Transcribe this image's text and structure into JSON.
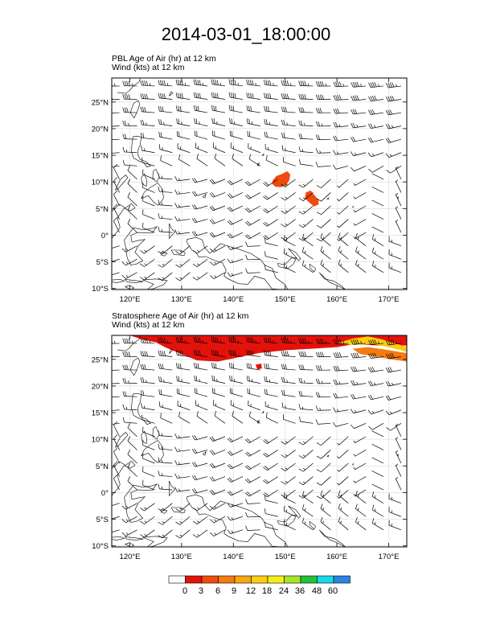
{
  "main_title": "2014-03-01_18:00:00",
  "colors": {
    "levels": [
      "#ffffff",
      "#e3120b",
      "#f04b0f",
      "#f47a12",
      "#f7a612",
      "#f9cd10",
      "#f3ee1a",
      "#a6e32a",
      "#22c13a",
      "#19d8ea",
      "#2a83e0",
      "#0b0f86"
    ],
    "coast": "#000000",
    "grid": "#d9d9d9"
  },
  "colorbar": {
    "labels": [
      "0",
      "3",
      "6",
      "9",
      "12",
      "18",
      "24",
      "36",
      "48",
      "60"
    ]
  },
  "chart_data": [
    {
      "type": "heatmap",
      "title": "PBL Age of Air   (hr)     at   12 km",
      "subtitle": "Wind   (kts)     at   12 km",
      "xlim": [
        116.5,
        173.5
      ],
      "ylim": [
        -10.2,
        29.5
      ],
      "xticks": [
        120,
        130,
        140,
        150,
        160,
        170
      ],
      "xtick_labels": [
        "120°E",
        "130°E",
        "140°E",
        "150°E",
        "160°E",
        "170°E"
      ],
      "yticks": [
        -10,
        -5,
        0,
        5,
        10,
        15,
        20,
        25
      ],
      "ytick_labels": [
        "10°S",
        "5°S",
        "0°",
        "5°N",
        "10°N",
        "15°N",
        "20°N",
        "25°N"
      ],
      "grid": true,
      "regions": [
        {
          "name": "patch-west",
          "level": 2,
          "points": [
            [
              147.6,
              10.3
            ],
            [
              148.3,
              11.1
            ],
            [
              149.4,
              11.5
            ],
            [
              150.4,
              12.0
            ],
            [
              151.0,
              11.4
            ],
            [
              150.8,
              10.3
            ],
            [
              150.2,
              9.4
            ],
            [
              149.2,
              9.0
            ],
            [
              148.1,
              9.1
            ],
            [
              147.5,
              9.6
            ]
          ]
        },
        {
          "name": "patch-east",
          "level": 2,
          "points": [
            [
              154.0,
              8.0
            ],
            [
              154.9,
              8.4
            ],
            [
              155.6,
              7.6
            ],
            [
              156.4,
              6.7
            ],
            [
              156.5,
              5.8
            ],
            [
              155.6,
              5.4
            ],
            [
              154.7,
              6.1
            ],
            [
              153.8,
              6.9
            ]
          ]
        }
      ]
    },
    {
      "type": "heatmap",
      "title": "Stratosphere Age of Air   (hr)     at   12 km",
      "subtitle": "Wind   (kts)     at   12 km",
      "xlim": [
        116.5,
        173.5
      ],
      "ylim": [
        -10.2,
        29.5
      ],
      "xticks": [
        120,
        130,
        140,
        150,
        160,
        170
      ],
      "xtick_labels": [
        "120°E",
        "130°E",
        "140°E",
        "150°E",
        "160°E",
        "170°E"
      ],
      "yticks": [
        -10,
        -5,
        0,
        5,
        10,
        15,
        20,
        25
      ],
      "ytick_labels": [
        "10°S",
        "5°S",
        "0°",
        "5°N",
        "10°N",
        "15°N",
        "20°N",
        "25°N"
      ],
      "grid": true,
      "regions": [
        {
          "name": "stratosphere-band",
          "level": 1,
          "points": [
            [
              120.0,
              29.5
            ],
            [
              173.5,
              29.5
            ],
            [
              173.5,
              27.6
            ],
            [
              168.0,
              27.6
            ],
            [
              163.5,
              27.9
            ],
            [
              160.0,
              27.3
            ],
            [
              155.0,
              27.0
            ],
            [
              150.0,
              26.7
            ],
            [
              145.0,
              26.2
            ],
            [
              141.0,
              25.4
            ],
            [
              137.0,
              24.6
            ],
            [
              133.0,
              24.8
            ],
            [
              130.0,
              26.0
            ],
            [
              127.0,
              27.2
            ],
            [
              125.0,
              28.2
            ],
            [
              122.5,
              28.7
            ]
          ]
        },
        {
          "name": "east-tail",
          "level": 3,
          "points": [
            [
              163.0,
              27.0
            ],
            [
              166.0,
              27.3
            ],
            [
              169.0,
              26.9
            ],
            [
              172.0,
              26.4
            ],
            [
              173.5,
              26.2
            ],
            [
              173.5,
              24.6
            ],
            [
              170.5,
              25.0
            ],
            [
              167.0,
              25.6
            ],
            [
              164.5,
              26.0
            ]
          ]
        },
        {
          "name": "east-tail-yellow",
          "level": 5,
          "points": [
            [
              160.0,
              28.0
            ],
            [
              163.0,
              28.9
            ],
            [
              166.0,
              29.3
            ],
            [
              168.5,
              28.8
            ],
            [
              172.0,
              27.8
            ],
            [
              173.5,
              27.3
            ],
            [
              173.5,
              26.4
            ],
            [
              170.0,
              27.3
            ],
            [
              166.5,
              27.9
            ],
            [
              163.5,
              27.7
            ]
          ]
        },
        {
          "name": "blob-145",
          "level": 1,
          "points": [
            [
              144.3,
              24.0
            ],
            [
              145.4,
              24.2
            ],
            [
              145.5,
              23.3
            ],
            [
              144.6,
              23.1
            ]
          ]
        }
      ]
    }
  ]
}
